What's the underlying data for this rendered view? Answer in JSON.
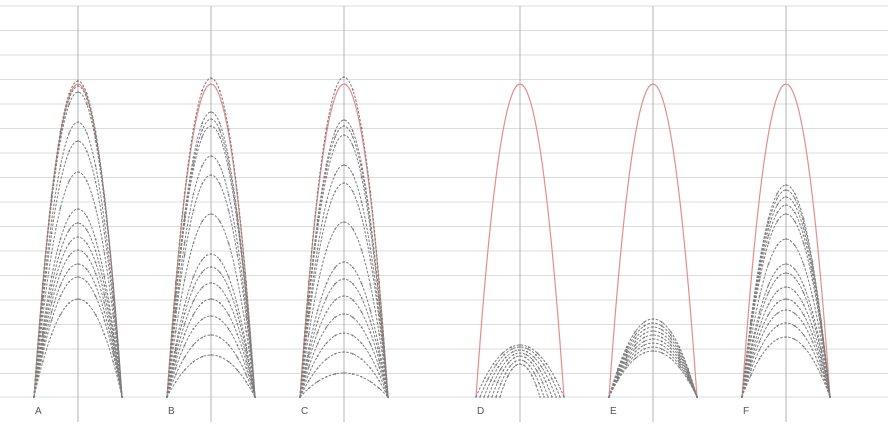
{
  "colors": {
    "background": "#ffffff",
    "grid": "#dcdcdc",
    "axis": "#b4b4b4",
    "reference_curve": "#e38e8e",
    "curves": "#7d7d7d",
    "labels": "#555555"
  },
  "panels": [
    {
      "label": "A",
      "curves": [
        {
          "halfwidth": 44,
          "height": 316,
          "shape": 1.0
        },
        {
          "halfwidth": 44,
          "height": 311,
          "shape": 1.0
        },
        {
          "halfwidth": 44,
          "height": 305,
          "shape": 1.0
        },
        {
          "halfwidth": 44,
          "height": 275,
          "shape": 1.0
        },
        {
          "halfwidth": 44,
          "height": 256,
          "shape": 1.0
        },
        {
          "halfwidth": 44,
          "height": 225,
          "shape": 1.0
        },
        {
          "halfwidth": 44,
          "height": 188,
          "shape": 1.0
        },
        {
          "halfwidth": 44,
          "height": 174,
          "shape": 1.0
        },
        {
          "halfwidth": 44,
          "height": 160,
          "shape": 1.0
        },
        {
          "halfwidth": 44,
          "height": 147,
          "shape": 1.0
        },
        {
          "halfwidth": 44,
          "height": 133,
          "shape": 1.0
        },
        {
          "halfwidth": 44,
          "height": 120,
          "shape": 1.0
        },
        {
          "halfwidth": 44,
          "height": 98,
          "shape": 1.0
        }
      ]
    },
    {
      "label": "B",
      "curves": [
        {
          "halfwidth": 44,
          "height": 319,
          "shape": 1.0
        },
        {
          "halfwidth": 44,
          "height": 285,
          "shape": 1.0
        },
        {
          "halfwidth": 44,
          "height": 278,
          "shape": 1.0
        },
        {
          "halfwidth": 44,
          "height": 271,
          "shape": 1.0
        },
        {
          "halfwidth": 44,
          "height": 241,
          "shape": 1.0
        },
        {
          "halfwidth": 44,
          "height": 222,
          "shape": 1.0
        },
        {
          "halfwidth": 44,
          "height": 183,
          "shape": 1.0
        },
        {
          "halfwidth": 44,
          "height": 143,
          "shape": 1.0
        },
        {
          "halfwidth": 44,
          "height": 130,
          "shape": 1.0
        },
        {
          "halfwidth": 44,
          "height": 114,
          "shape": 1.0
        },
        {
          "halfwidth": 44,
          "height": 98,
          "shape": 1.0
        },
        {
          "halfwidth": 44,
          "height": 81,
          "shape": 1.0
        },
        {
          "halfwidth": 44,
          "height": 62,
          "shape": 1.0
        },
        {
          "halfwidth": 44,
          "height": 42,
          "shape": 1.0
        }
      ]
    },
    {
      "label": "C",
      "curves": [
        {
          "halfwidth": 44,
          "height": 320,
          "shape": 1.0
        },
        {
          "halfwidth": 44,
          "height": 277,
          "shape": 1.0
        },
        {
          "halfwidth": 44,
          "height": 271,
          "shape": 1.0
        },
        {
          "halfwidth": 44,
          "height": 262,
          "shape": 1.0
        },
        {
          "halfwidth": 44,
          "height": 232,
          "shape": 1.0
        },
        {
          "halfwidth": 44,
          "height": 214,
          "shape": 1.0
        },
        {
          "halfwidth": 44,
          "height": 175,
          "shape": 1.0
        },
        {
          "halfwidth": 44,
          "height": 135,
          "shape": 1.0
        },
        {
          "halfwidth": 44,
          "height": 118,
          "shape": 1.0
        },
        {
          "halfwidth": 44,
          "height": 101,
          "shape": 1.0
        },
        {
          "halfwidth": 44,
          "height": 83,
          "shape": 1.0
        },
        {
          "halfwidth": 44,
          "height": 64,
          "shape": 1.0
        },
        {
          "halfwidth": 44,
          "height": 45,
          "shape": 1.0
        },
        {
          "halfwidth": 44,
          "height": 24,
          "shape": 1.0
        }
      ]
    },
    {
      "label": "D",
      "curves": [
        {
          "halfwidth": 44,
          "height": 52,
          "shape": 1.0
        },
        {
          "halfwidth": 40,
          "height": 50,
          "shape": 1.0
        },
        {
          "halfwidth": 36,
          "height": 47,
          "shape": 1.0
        },
        {
          "halfwidth": 32,
          "height": 44,
          "shape": 1.0
        },
        {
          "halfwidth": 28,
          "height": 41,
          "shape": 1.0
        },
        {
          "halfwidth": 24,
          "height": 37,
          "shape": 1.0
        },
        {
          "halfwidth": 20,
          "height": 33,
          "shape": 1.0
        }
      ]
    },
    {
      "label": "E",
      "curves": [
        {
          "halfwidth": 44,
          "height": 78,
          "shape": 1.0
        },
        {
          "halfwidth": 44,
          "height": 74,
          "shape": 1.0
        },
        {
          "halfwidth": 44,
          "height": 70,
          "shape": 1.0
        },
        {
          "halfwidth": 44,
          "height": 66,
          "shape": 1.0
        },
        {
          "halfwidth": 44,
          "height": 62,
          "shape": 1.0
        },
        {
          "halfwidth": 44,
          "height": 58,
          "shape": 1.0
        },
        {
          "halfwidth": 44,
          "height": 54,
          "shape": 1.0
        },
        {
          "halfwidth": 44,
          "height": 50,
          "shape": 1.0
        },
        {
          "halfwidth": 44,
          "height": 46,
          "shape": 1.0
        }
      ]
    },
    {
      "label": "F",
      "curves": [
        {
          "halfwidth": 44,
          "height": 212,
          "shape": 1.0
        },
        {
          "halfwidth": 44,
          "height": 207,
          "shape": 1.0
        },
        {
          "halfwidth": 44,
          "height": 200,
          "shape": 1.0
        },
        {
          "halfwidth": 44,
          "height": 192,
          "shape": 1.0
        },
        {
          "halfwidth": 44,
          "height": 183,
          "shape": 1.0
        },
        {
          "halfwidth": 44,
          "height": 158,
          "shape": 1.0
        },
        {
          "halfwidth": 44,
          "height": 133,
          "shape": 1.0
        },
        {
          "halfwidth": 44,
          "height": 124,
          "shape": 1.0
        },
        {
          "halfwidth": 44,
          "height": 110,
          "shape": 1.0
        },
        {
          "halfwidth": 44,
          "height": 98,
          "shape": 1.0
        },
        {
          "halfwidth": 44,
          "height": 87,
          "shape": 1.0
        },
        {
          "halfwidth": 44,
          "height": 74,
          "shape": 1.0
        },
        {
          "halfwidth": 44,
          "height": 60,
          "shape": 1.0
        }
      ]
    }
  ]
}
